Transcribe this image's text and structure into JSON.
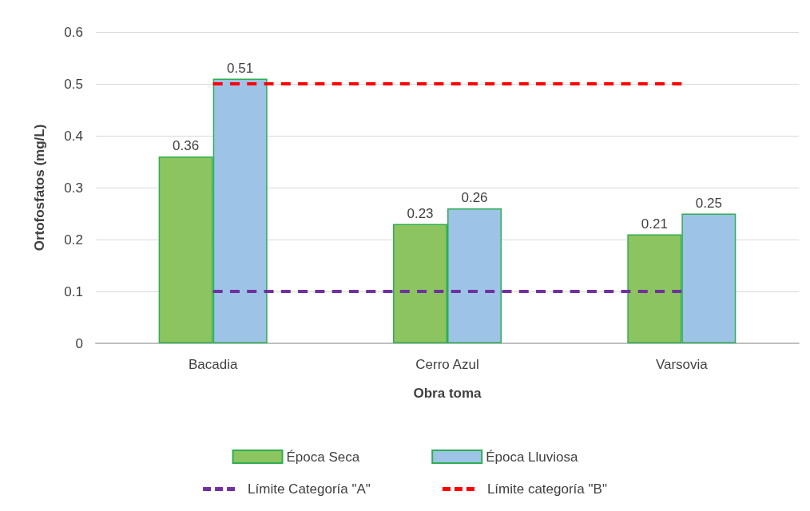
{
  "chart_data": {
    "type": "bar",
    "xlabel": "Obra toma",
    "ylabel": "Ortofosfatos (mg/L)",
    "categories": [
      "Bacadia",
      "Cerro Azul",
      "Varsovia"
    ],
    "series": [
      {
        "name": "Época Seca",
        "color": "#8cc45f",
        "values": [
          0.36,
          0.23,
          0.21
        ],
        "value_labels": [
          "0.36",
          "0.23",
          "0.21"
        ]
      },
      {
        "name": "Época Lluviosa",
        "color": "#9dc3e6",
        "values": [
          0.51,
          0.26,
          0.25
        ],
        "value_labels": [
          "0.51",
          "0.26",
          "0.25"
        ]
      },
      {
        "name": "Límite Categoría \"A\"",
        "type": "line",
        "color": "#7030a0",
        "values": [
          0.1,
          0.1,
          0.1
        ],
        "line_style": "dashed",
        "marker": "none"
      },
      {
        "name": "Límite categoría \"B\"",
        "type": "line",
        "color": "#ff0000",
        "values": [
          0.5,
          0.5,
          0.5
        ],
        "line_style": "dashed",
        "marker": "none"
      }
    ],
    "ylim": [
      0,
      0.6
    ],
    "yticks": [
      0,
      0.1,
      0.2,
      0.3,
      0.4,
      0.5,
      0.6
    ],
    "grid": "y",
    "legend": "bottom"
  }
}
